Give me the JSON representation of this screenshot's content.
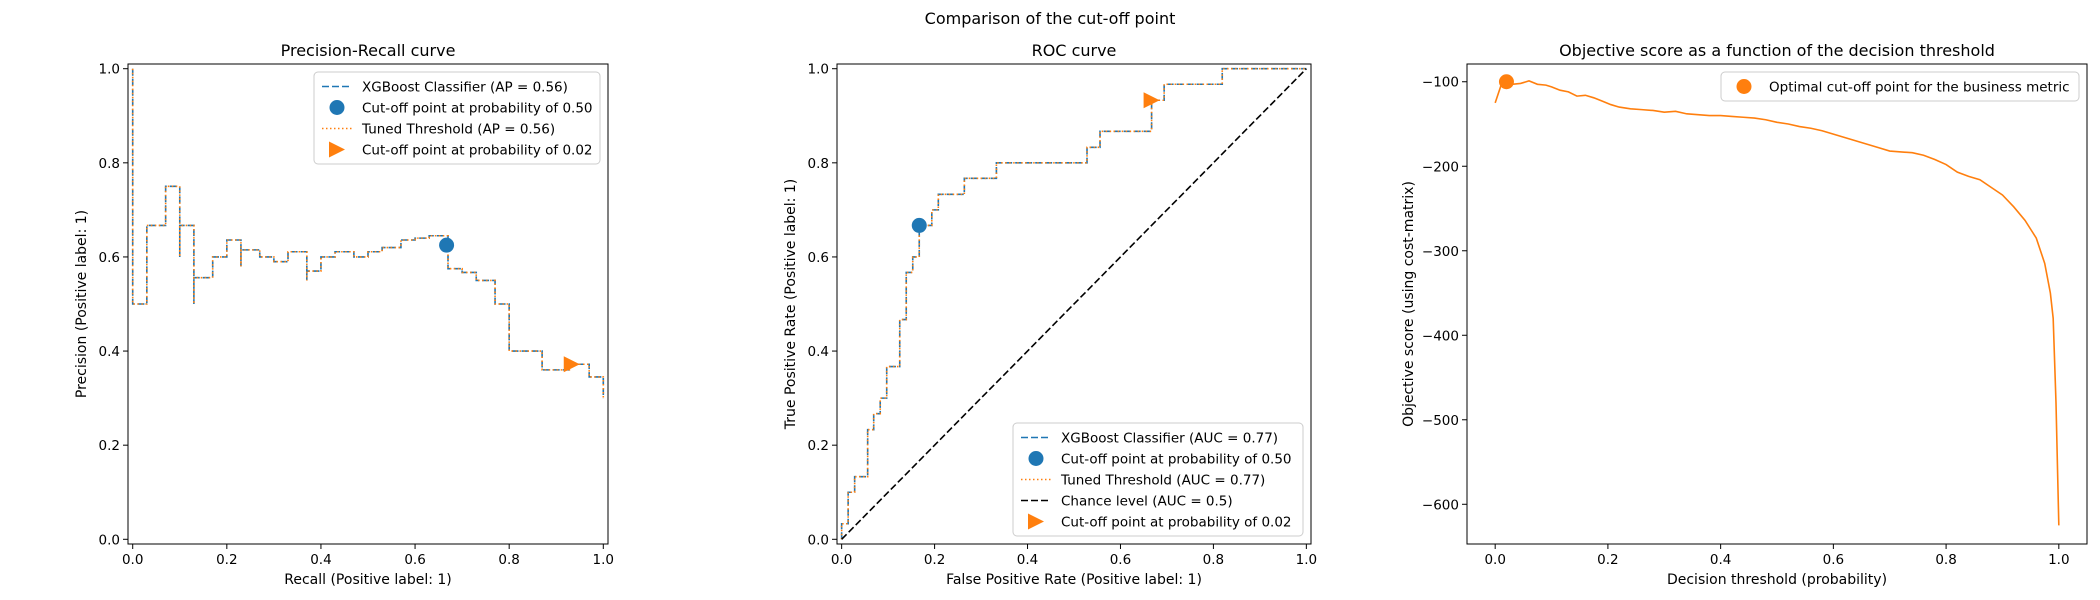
{
  "suptitle": "Comparison of the cut-off point",
  "colors": {
    "blue": "#1f77b4",
    "orange": "#ff7f0e",
    "black": "#000000"
  },
  "chart_data": [
    {
      "type": "line",
      "title": "Precision-Recall curve",
      "xlabel": "Recall (Positive label: 1)",
      "ylabel": "Precision (Positive label: 1)",
      "xlim": [
        -0.01,
        1.01
      ],
      "ylim": [
        -0.01,
        1.01
      ],
      "xticks": [
        0.0,
        0.2,
        0.4,
        0.6,
        0.8,
        1.0
      ],
      "yticks": [
        0.0,
        0.2,
        0.4,
        0.6,
        0.8,
        1.0
      ],
      "tick_labels": {
        "x": [
          "0.0",
          "0.2",
          "0.4",
          "0.6",
          "0.8",
          "1.0"
        ],
        "y": [
          "0.0",
          "0.2",
          "0.4",
          "0.6",
          "0.8",
          "1.0"
        ]
      },
      "step": true,
      "legend_position": "top-right",
      "series": [
        {
          "name": "XGBoost Classifier (AP = 0.56)",
          "style": "dashed",
          "color": "#1f77b4",
          "points": [
            [
              0,
              1.0
            ],
            [
              0,
              0.5
            ],
            [
              0.03,
              0.5
            ],
            [
              0.03,
              0.667
            ],
            [
              0.07,
              0.667
            ],
            [
              0.07,
              0.75
            ],
            [
              0.1,
              0.75
            ],
            [
              0.1,
              0.6
            ],
            [
              0.1,
              0.667
            ],
            [
              0.13,
              0.667
            ],
            [
              0.13,
              0.5
            ],
            [
              0.13,
              0.556
            ],
            [
              0.17,
              0.556
            ],
            [
              0.17,
              0.6
            ],
            [
              0.2,
              0.6
            ],
            [
              0.2,
              0.636
            ],
            [
              0.23,
              0.636
            ],
            [
              0.23,
              0.58
            ],
            [
              0.23,
              0.615
            ],
            [
              0.27,
              0.615
            ],
            [
              0.27,
              0.6
            ],
            [
              0.3,
              0.6
            ],
            [
              0.3,
              0.59
            ],
            [
              0.33,
              0.59
            ],
            [
              0.33,
              0.611
            ],
            [
              0.37,
              0.611
            ],
            [
              0.37,
              0.55
            ],
            [
              0.37,
              0.57
            ],
            [
              0.4,
              0.57
            ],
            [
              0.4,
              0.6
            ],
            [
              0.43,
              0.6
            ],
            [
              0.43,
              0.611
            ],
            [
              0.47,
              0.611
            ],
            [
              0.47,
              0.6
            ],
            [
              0.5,
              0.6
            ],
            [
              0.5,
              0.611
            ],
            [
              0.53,
              0.611
            ],
            [
              0.53,
              0.62
            ],
            [
              0.57,
              0.62
            ],
            [
              0.57,
              0.636
            ],
            [
              0.6,
              0.636
            ],
            [
              0.6,
              0.64
            ],
            [
              0.63,
              0.64
            ],
            [
              0.63,
              0.645
            ],
            [
              0.67,
              0.645
            ],
            [
              0.67,
              0.625
            ],
            [
              0.67,
              0.575
            ],
            [
              0.7,
              0.575
            ],
            [
              0.7,
              0.567
            ],
            [
              0.73,
              0.567
            ],
            [
              0.73,
              0.55
            ],
            [
              0.77,
              0.55
            ],
            [
              0.77,
              0.5
            ],
            [
              0.8,
              0.5
            ],
            [
              0.8,
              0.4
            ],
            [
              0.87,
              0.4
            ],
            [
              0.87,
              0.36
            ],
            [
              0.93,
              0.36
            ],
            [
              0.93,
              0.372
            ],
            [
              0.97,
              0.372
            ],
            [
              0.97,
              0.345
            ],
            [
              1.0,
              0.345
            ],
            [
              1.0,
              0.3
            ]
          ]
        },
        {
          "name": "Tuned Threshold (AP = 0.56)",
          "style": "dotted",
          "color": "#ff7f0e",
          "same_as": 0
        }
      ],
      "markers": [
        {
          "name": "Cut-off point at probability of 0.50",
          "shape": "circle",
          "color": "#1f77b4",
          "x": 0.667,
          "y": 0.625
        },
        {
          "name": "Cut-off point at probability of 0.02",
          "shape": "triangle-right",
          "color": "#ff7f0e",
          "x": 0.933,
          "y": 0.372
        }
      ]
    },
    {
      "type": "line",
      "title": "ROC curve",
      "xlabel": "False Positive Rate (Positive label: 1)",
      "ylabel": "True Positive Rate (Positive label: 1)",
      "xlim": [
        -0.01,
        1.01
      ],
      "ylim": [
        -0.01,
        1.01
      ],
      "xticks": [
        0.0,
        0.2,
        0.4,
        0.6,
        0.8,
        1.0
      ],
      "yticks": [
        0.0,
        0.2,
        0.4,
        0.6,
        0.8,
        1.0
      ],
      "tick_labels": {
        "x": [
          "0.0",
          "0.2",
          "0.4",
          "0.6",
          "0.8",
          "1.0"
        ],
        "y": [
          "0.0",
          "0.2",
          "0.4",
          "0.6",
          "0.8",
          "1.0"
        ]
      },
      "step": true,
      "legend_position": "bottom-right",
      "series": [
        {
          "name": "XGBoost Classifier (AUC = 0.77)",
          "style": "dashed",
          "color": "#1f77b4",
          "points": [
            [
              0,
              0
            ],
            [
              0,
              0.033
            ],
            [
              0.014,
              0.033
            ],
            [
              0.014,
              0.1
            ],
            [
              0.028,
              0.1
            ],
            [
              0.028,
              0.133
            ],
            [
              0.056,
              0.133
            ],
            [
              0.056,
              0.233
            ],
            [
              0.069,
              0.233
            ],
            [
              0.069,
              0.267
            ],
            [
              0.083,
              0.267
            ],
            [
              0.083,
              0.3
            ],
            [
              0.097,
              0.3
            ],
            [
              0.097,
              0.367
            ],
            [
              0.125,
              0.367
            ],
            [
              0.125,
              0.467
            ],
            [
              0.139,
              0.467
            ],
            [
              0.139,
              0.567
            ],
            [
              0.153,
              0.567
            ],
            [
              0.153,
              0.6
            ],
            [
              0.167,
              0.6
            ],
            [
              0.167,
              0.633
            ],
            [
              0.167,
              0.667
            ],
            [
              0.194,
              0.667
            ],
            [
              0.194,
              0.7
            ],
            [
              0.208,
              0.7
            ],
            [
              0.208,
              0.733
            ],
            [
              0.264,
              0.733
            ],
            [
              0.264,
              0.767
            ],
            [
              0.333,
              0.767
            ],
            [
              0.333,
              0.8
            ],
            [
              0.528,
              0.8
            ],
            [
              0.528,
              0.833
            ],
            [
              0.556,
              0.833
            ],
            [
              0.556,
              0.867
            ],
            [
              0.667,
              0.867
            ],
            [
              0.667,
              0.9
            ],
            [
              0.667,
              0.933
            ],
            [
              0.694,
              0.933
            ],
            [
              0.694,
              0.967
            ],
            [
              0.819,
              0.967
            ],
            [
              0.819,
              1.0
            ],
            [
              1.0,
              1.0
            ]
          ]
        },
        {
          "name": "Tuned Threshold (AUC = 0.77)",
          "style": "dotted",
          "color": "#ff7f0e",
          "same_as": 0
        },
        {
          "name": "Chance level (AUC = 0.5)",
          "style": "dashed",
          "color": "#000000",
          "points": [
            [
              0,
              0
            ],
            [
              1,
              1
            ]
          ]
        }
      ],
      "markers": [
        {
          "name": "Cut-off point at probability of 0.50",
          "shape": "circle",
          "color": "#1f77b4",
          "x": 0.167,
          "y": 0.667
        },
        {
          "name": "Cut-off point at probability of 0.02",
          "shape": "triangle-right",
          "color": "#ff7f0e",
          "x": 0.667,
          "y": 0.933
        }
      ]
    },
    {
      "type": "line",
      "title": "Objective score as a function of the decision threshold",
      "xlabel": "Decision threshold (probability)",
      "ylabel": "Objective score (using cost-matrix)",
      "xlim": [
        -0.05,
        1.05
      ],
      "ylim": [
        -647,
        -79
      ],
      "xticks": [
        0.0,
        0.2,
        0.4,
        0.6,
        0.8,
        1.0
      ],
      "yticks": [
        -600,
        -500,
        -400,
        -300,
        -200,
        -100
      ],
      "tick_labels": {
        "x": [
          "0.0",
          "0.2",
          "0.4",
          "0.6",
          "0.8",
          "1.0"
        ],
        "y": [
          "−600",
          "−500",
          "−400",
          "−300",
          "−200",
          "−100"
        ]
      },
      "step": false,
      "legend_position": "top-right",
      "series": [
        {
          "name": "",
          "style": "solid",
          "color": "#ff7f0e",
          "points": [
            [
              0.0,
              -125
            ],
            [
              0.01,
              -105
            ],
            [
              0.02,
              -100
            ],
            [
              0.03,
              -103
            ],
            [
              0.045,
              -102
            ],
            [
              0.06,
              -99
            ],
            [
              0.075,
              -103
            ],
            [
              0.09,
              -104
            ],
            [
              0.1,
              -106
            ],
            [
              0.115,
              -110
            ],
            [
              0.13,
              -112
            ],
            [
              0.145,
              -117
            ],
            [
              0.16,
              -116
            ],
            [
              0.175,
              -119
            ],
            [
              0.19,
              -123
            ],
            [
              0.205,
              -127
            ],
            [
              0.22,
              -130
            ],
            [
              0.24,
              -132
            ],
            [
              0.26,
              -133
            ],
            [
              0.28,
              -134
            ],
            [
              0.3,
              -136
            ],
            [
              0.32,
              -135
            ],
            [
              0.34,
              -138
            ],
            [
              0.36,
              -139
            ],
            [
              0.38,
              -140
            ],
            [
              0.4,
              -140
            ],
            [
              0.42,
              -141
            ],
            [
              0.44,
              -142
            ],
            [
              0.46,
              -143
            ],
            [
              0.48,
              -145
            ],
            [
              0.5,
              -148
            ],
            [
              0.52,
              -150
            ],
            [
              0.54,
              -153
            ],
            [
              0.56,
              -155
            ],
            [
              0.58,
              -158
            ],
            [
              0.6,
              -162
            ],
            [
              0.62,
              -166
            ],
            [
              0.64,
              -170
            ],
            [
              0.66,
              -174
            ],
            [
              0.68,
              -178
            ],
            [
              0.7,
              -182
            ],
            [
              0.72,
              -183
            ],
            [
              0.74,
              -184
            ],
            [
              0.76,
              -187
            ],
            [
              0.78,
              -192
            ],
            [
              0.8,
              -198
            ],
            [
              0.82,
              -207
            ],
            [
              0.84,
              -212
            ],
            [
              0.86,
              -216
            ],
            [
              0.88,
              -225
            ],
            [
              0.9,
              -234
            ],
            [
              0.92,
              -248
            ],
            [
              0.94,
              -264
            ],
            [
              0.96,
              -285
            ],
            [
              0.975,
              -315
            ],
            [
              0.985,
              -350
            ],
            [
              0.99,
              -380
            ],
            [
              0.995,
              -480
            ],
            [
              1.0,
              -625
            ]
          ]
        }
      ],
      "markers": [
        {
          "name": "Optimal cut-off point for the business metric",
          "shape": "circle",
          "color": "#ff7f0e",
          "x": 0.02,
          "y": -100
        }
      ]
    }
  ]
}
